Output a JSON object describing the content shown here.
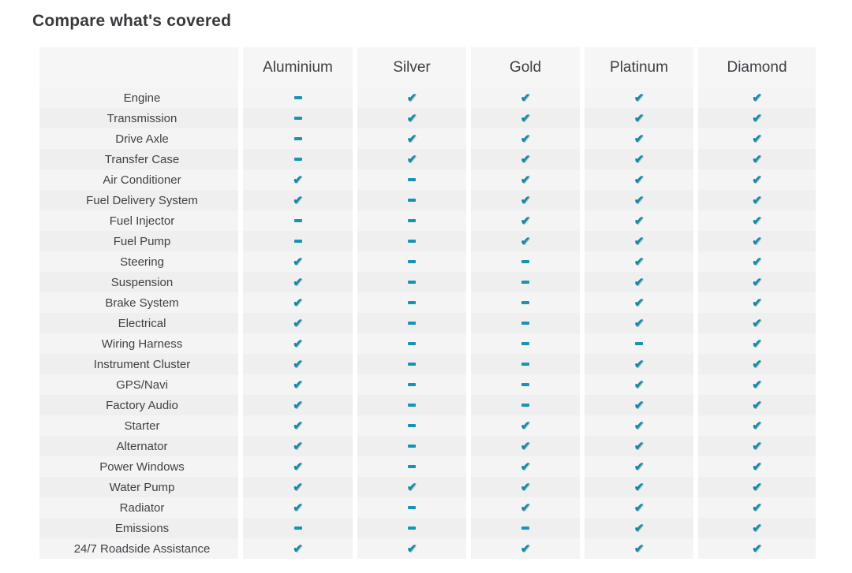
{
  "page": {
    "title": "Compare what's covered"
  },
  "table": {
    "columns": [
      "Aluminium",
      "Silver",
      "Gold",
      "Platinum",
      "Diamond"
    ],
    "rows": [
      {
        "label": "Engine",
        "values": [
          0,
          1,
          1,
          1,
          1
        ]
      },
      {
        "label": "Transmission",
        "values": [
          0,
          1,
          1,
          1,
          1
        ]
      },
      {
        "label": "Drive Axle",
        "values": [
          0,
          1,
          1,
          1,
          1
        ]
      },
      {
        "label": "Transfer Case",
        "values": [
          0,
          1,
          1,
          1,
          1
        ]
      },
      {
        "label": "Air Conditioner",
        "values": [
          1,
          0,
          1,
          1,
          1
        ]
      },
      {
        "label": "Fuel Delivery System",
        "values": [
          1,
          0,
          1,
          1,
          1
        ]
      },
      {
        "label": "Fuel Injector",
        "values": [
          0,
          0,
          1,
          1,
          1
        ]
      },
      {
        "label": "Fuel Pump",
        "values": [
          0,
          0,
          1,
          1,
          1
        ]
      },
      {
        "label": "Steering",
        "values": [
          1,
          0,
          0,
          1,
          1
        ]
      },
      {
        "label": "Suspension",
        "values": [
          1,
          0,
          0,
          1,
          1
        ]
      },
      {
        "label": "Brake System",
        "values": [
          1,
          0,
          0,
          1,
          1
        ]
      },
      {
        "label": "Electrical",
        "values": [
          1,
          0,
          0,
          1,
          1
        ]
      },
      {
        "label": "Wiring Harness",
        "values": [
          1,
          0,
          0,
          0,
          1
        ]
      },
      {
        "label": "Instrument Cluster",
        "values": [
          1,
          0,
          0,
          1,
          1
        ]
      },
      {
        "label": "GPS/Navi",
        "values": [
          1,
          0,
          0,
          1,
          1
        ]
      },
      {
        "label": "Factory Audio",
        "values": [
          1,
          0,
          0,
          1,
          1
        ]
      },
      {
        "label": "Starter",
        "values": [
          1,
          0,
          1,
          1,
          1
        ]
      },
      {
        "label": "Alternator",
        "values": [
          1,
          0,
          1,
          1,
          1
        ]
      },
      {
        "label": "Power Windows",
        "values": [
          1,
          0,
          1,
          1,
          1
        ]
      },
      {
        "label": "Water Pump",
        "values": [
          1,
          1,
          1,
          1,
          1
        ]
      },
      {
        "label": "Radiator",
        "values": [
          1,
          0,
          1,
          1,
          1
        ]
      },
      {
        "label": "Emissions",
        "values": [
          0,
          0,
          0,
          1,
          1
        ]
      },
      {
        "label": "24/7 Roadside Assistance",
        "values": [
          1,
          1,
          1,
          1,
          1
        ]
      }
    ],
    "icons": {
      "covered_glyph": "✔",
      "covered_name": "check-icon",
      "not_covered_name": "dash-icon"
    },
    "colors": {
      "check": "#1289a6",
      "dash": "#1793b4",
      "row_light": "#f4f4f5",
      "row_dark": "#efeff0",
      "header_bg": "#f6f6f7"
    }
  }
}
